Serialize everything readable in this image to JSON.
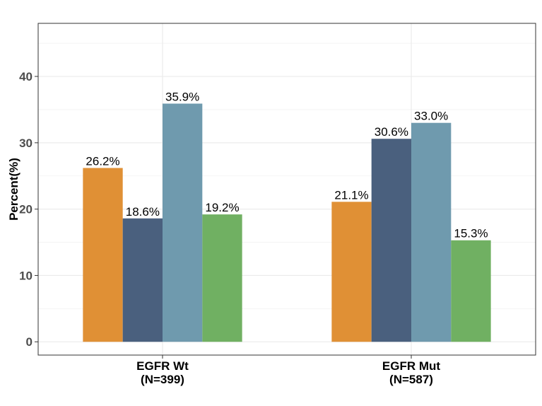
{
  "chart_data": {
    "type": "bar",
    "categories": [
      "EGFR Wt",
      "EGFR Mut"
    ],
    "category_sublabels": [
      "(N=399)",
      "(N=587)"
    ],
    "series": [
      {
        "color": "#E09035",
        "values": [
          26.2,
          21.1
        ],
        "labels": [
          "26.2%",
          "21.1%"
        ]
      },
      {
        "color": "#4A607E",
        "values": [
          18.6,
          30.6
        ],
        "labels": [
          "18.6%",
          "30.6%"
        ]
      },
      {
        "color": "#6F9AAE",
        "values": [
          35.9,
          33.0
        ],
        "labels": [
          "35.9%",
          "33.0%"
        ]
      },
      {
        "color": "#70B062",
        "values": [
          19.2,
          15.3
        ],
        "labels": [
          "19.2%",
          "15.3%"
        ]
      }
    ],
    "ylabel": "Percent(%)",
    "xlabel": "",
    "ylim": [
      -2,
      48
    ],
    "yticks": [
      0,
      10,
      20,
      30,
      40
    ],
    "ytick_labels": [
      "0",
      "10",
      "20",
      "30",
      "40"
    ],
    "grid": true,
    "legend": "none"
  }
}
